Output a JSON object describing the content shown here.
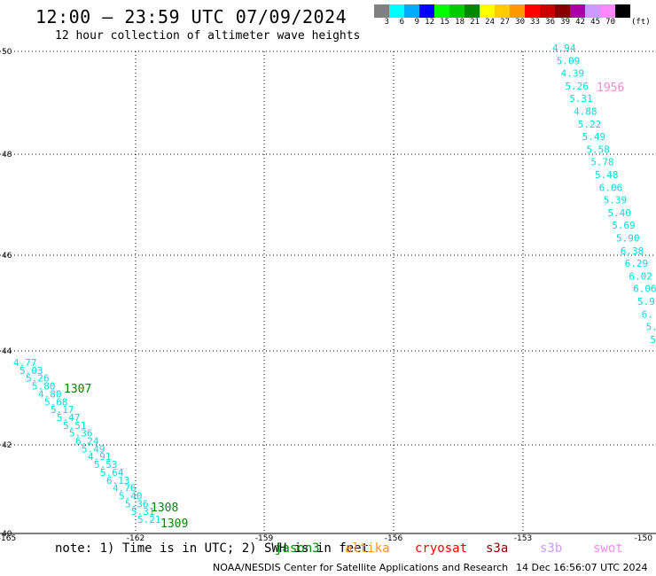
{
  "header": {
    "title": "12:00 – 23:59 UTC 07/09/2024",
    "subtitle": "12 hour collection of altimeter wave heights"
  },
  "colorbar": {
    "colors": [
      "#808080",
      "#00ffff",
      "#00aaff",
      "#0000ff",
      "#00ff00",
      "#00cc00",
      "#008800",
      "#ffff00",
      "#ffcc00",
      "#ff9900",
      "#ff0000",
      "#cc0000",
      "#880000",
      "#aa00aa",
      "#cc99ff",
      "#ff88ff",
      "#000000"
    ],
    "labels": [
      "3",
      "6",
      "9",
      "12",
      "15",
      "18",
      "21",
      "24",
      "27",
      "30",
      "33",
      "36",
      "39",
      "42",
      "45",
      "70"
    ],
    "unit": "(ft)"
  },
  "map": {
    "lat_labels": [
      "50",
      "48",
      "46",
      "44",
      "42",
      "40"
    ],
    "lon_labels": [
      "-165",
      "-162",
      "-159",
      "-156",
      "-153",
      "-150"
    ]
  },
  "tracks": {
    "west": {
      "color": "#00dddd",
      "values": [
        "4.77",
        "5.03",
        "5.26",
        "5.80",
        "4.80",
        "5.68",
        "5.17",
        "5.47",
        "5.51",
        "5.36",
        "6.24",
        "5.49",
        "4.91",
        "5.53",
        "5.64",
        "6.13",
        "4.76",
        "5.40",
        "5.36",
        "5.31",
        "5.21"
      ]
    },
    "east": {
      "color": "#00dddd",
      "values": [
        "4.94",
        "5.09",
        "4.39",
        "5.26",
        "5.31",
        "4.88",
        "5.22",
        "5.49",
        "5.58",
        "5.78",
        "5.48",
        "6.06",
        "5.39",
        "5.40",
        "5.69",
        "5.90",
        "6.38",
        "6.29",
        "6.02",
        "6.06",
        "5.9",
        "6.",
        "5.",
        "5"
      ]
    },
    "time_labels": [
      {
        "text": "1307",
        "color": "#008800"
      },
      {
        "text": "1308",
        "color": "#008800"
      },
      {
        "text": "1309",
        "color": "#008800"
      },
      {
        "text": "1956",
        "color": "#ff88cc"
      }
    ]
  },
  "footer": {
    "note": "note: 1) Time is in UTC; 2) SWH is in feet",
    "satellites": [
      {
        "name": "jason3",
        "color": "#008800"
      },
      {
        "name": "altika",
        "color": "#ff9900"
      },
      {
        "name": "cryosat",
        "color": "#ff0000"
      },
      {
        "name": "s3a",
        "color": "#880000"
      },
      {
        "name": "s3b",
        "color": "#cc99ff"
      },
      {
        "name": "swot",
        "color": "#ff88ff"
      }
    ],
    "credit": "NOAA/NESDIS Center for Satellite Applications and Research",
    "timestamp": "14 Dec 16:56:07 UTC 2024"
  }
}
